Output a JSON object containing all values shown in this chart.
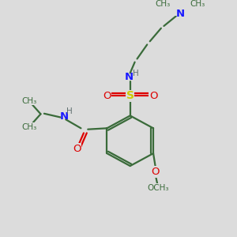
{
  "bg_color": "#dcdcdc",
  "bond_color": "#3a6b3a",
  "N_color": "#1a1aff",
  "O_color": "#dd0000",
  "S_color": "#cccc00",
  "H_color": "#607070",
  "figsize": [
    3.0,
    3.0
  ],
  "dpi": 100,
  "xlim": [
    0,
    10
  ],
  "ylim": [
    0,
    10
  ]
}
